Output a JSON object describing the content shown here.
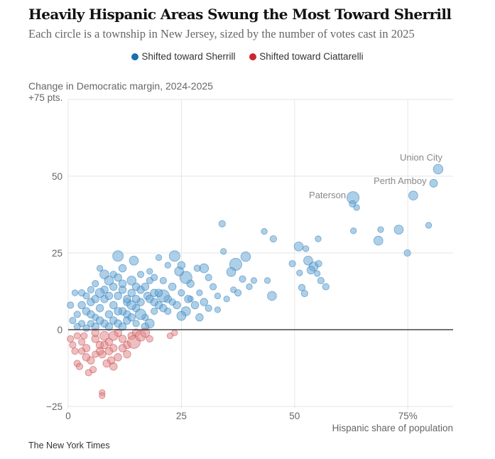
{
  "header": {
    "title": "Heavily Hispanic Areas Swung the Most Toward Sherrill",
    "subtitle": "Each circle is a township in New Jersey, sized by the number of votes cast in 2025"
  },
  "legend": [
    {
      "label": "Shifted toward Sherrill",
      "color": "#1a6fb0"
    },
    {
      "label": "Shifted toward Ciattarelli",
      "color": "#c8282d"
    }
  ],
  "footer": {
    "source": "The New York Times"
  },
  "chart_data": {
    "type": "scatter",
    "title": "Heavily Hispanic Areas Swung the Most Toward Sherrill",
    "ylabel": "Change in Democratic margin, 2024-2025",
    "xlabel": "Hispanic share of population",
    "xlim": [
      0,
      85
    ],
    "ylim": [
      -25,
      75
    ],
    "xticks": [
      {
        "v": 0,
        "label": "0"
      },
      {
        "v": 25,
        "label": "25"
      },
      {
        "v": 50,
        "label": "50"
      },
      {
        "v": 75,
        "label": "75%"
      }
    ],
    "yticks": [
      {
        "v": 75,
        "label": "+75 pts."
      },
      {
        "v": 50,
        "label": "50"
      },
      {
        "v": 25,
        "label": "25"
      },
      {
        "v": 0,
        "label": "0"
      },
      {
        "v": -25,
        "label": "−25"
      }
    ],
    "grid": true,
    "legend_position": "top-center",
    "point_format": [
      "hispanic_share",
      "margin_change",
      "relative_votes"
    ],
    "annotations": [
      {
        "label": "Union City",
        "x": 81.7,
        "y": 52.3
      },
      {
        "label": "Perth Amboy",
        "x": 80.7,
        "y": 47.7
      },
      {
        "label": "Paterson",
        "x": 62.9,
        "y": 43
      }
    ],
    "points": [
      [
        81.7,
        52.3,
        2.2
      ],
      [
        80.7,
        47.7,
        1.6
      ],
      [
        76.2,
        43.7,
        2
      ],
      [
        62.9,
        43,
        3
      ],
      [
        62.8,
        41,
        1.2
      ],
      [
        63.7,
        39.8,
        1
      ],
      [
        63,
        32.2,
        1
      ],
      [
        69,
        32.6,
        1
      ],
      [
        73,
        32.6,
        2
      ],
      [
        79.6,
        34,
        1
      ],
      [
        68.5,
        29,
        2
      ],
      [
        55.2,
        29.6,
        1
      ],
      [
        50.9,
        27.1,
        2
      ],
      [
        52.5,
        26.4,
        1
      ],
      [
        74.9,
        25,
        1.2
      ],
      [
        49.5,
        21.5,
        1.2
      ],
      [
        53,
        22.5,
        2
      ],
      [
        54.2,
        20.6,
        2
      ],
      [
        55.3,
        21.5,
        1.2
      ],
      [
        53.6,
        19.4,
        1.6
      ],
      [
        51.1,
        18.5,
        1
      ],
      [
        55,
        18.3,
        1
      ],
      [
        55.8,
        16,
        1.2
      ],
      [
        51.6,
        13.7,
        1.2
      ],
      [
        56.9,
        14,
        1.2
      ],
      [
        52.2,
        11.8,
        1.2
      ],
      [
        34,
        34.5,
        1.2
      ],
      [
        34.3,
        25.5,
        1
      ],
      [
        37,
        21.3,
        3
      ],
      [
        39.2,
        23.8,
        2.2
      ],
      [
        43.3,
        32,
        1
      ],
      [
        45.3,
        29.6,
        1.2
      ],
      [
        44,
        16,
        1
      ],
      [
        45,
        11,
        2
      ],
      [
        36,
        18.8,
        2
      ],
      [
        41,
        16,
        1
      ],
      [
        38.5,
        16.5,
        1.2
      ],
      [
        40,
        14,
        1
      ],
      [
        36.5,
        13,
        1
      ],
      [
        35,
        10,
        1
      ],
      [
        33,
        11,
        1
      ],
      [
        32,
        14,
        1.2
      ],
      [
        30,
        20,
        2
      ],
      [
        28.5,
        20,
        1.2
      ],
      [
        31,
        17,
        1.2
      ],
      [
        29,
        12,
        1
      ],
      [
        27,
        15,
        1.5
      ],
      [
        26,
        17,
        3
      ],
      [
        24.5,
        19,
        2
      ],
      [
        23.5,
        24,
        2.5
      ],
      [
        25,
        21,
        1.5
      ],
      [
        22,
        21,
        1
      ],
      [
        20,
        23.5,
        1
      ],
      [
        18,
        19,
        1
      ],
      [
        19,
        17,
        1.2
      ],
      [
        21,
        16,
        1.2
      ],
      [
        23,
        14,
        1.5
      ],
      [
        25,
        12,
        1.2
      ],
      [
        27,
        10,
        1
      ],
      [
        28,
        8,
        1.5
      ],
      [
        30,
        9,
        1.5
      ],
      [
        31,
        7,
        1.2
      ],
      [
        33,
        6.5,
        1
      ],
      [
        24,
        8,
        1.5
      ],
      [
        26,
        6,
        2
      ],
      [
        25,
        4.5,
        2
      ],
      [
        22,
        10,
        1.5
      ],
      [
        21,
        11,
        3
      ],
      [
        20,
        8,
        1.5
      ],
      [
        19,
        12,
        1.5
      ],
      [
        17.5,
        11,
        1.5
      ],
      [
        16,
        9,
        1.5
      ],
      [
        15,
        7,
        1.5
      ],
      [
        13,
        5,
        1.5
      ],
      [
        17,
        4,
        1.2
      ],
      [
        19,
        6,
        1.2
      ],
      [
        14,
        16,
        2
      ],
      [
        12,
        20,
        1.5
      ],
      [
        11,
        24,
        2.5
      ],
      [
        14.5,
        22.5,
        2
      ],
      [
        7,
        20,
        1
      ],
      [
        8,
        18,
        2
      ],
      [
        9,
        16,
        2
      ],
      [
        6,
        15,
        1.2
      ],
      [
        5,
        13,
        1.2
      ],
      [
        4,
        11,
        1.2
      ],
      [
        3,
        8,
        1.5
      ],
      [
        1.5,
        12,
        1
      ],
      [
        0.5,
        8,
        1.2
      ],
      [
        1,
        3,
        1.2
      ],
      [
        2,
        5,
        1.2
      ],
      [
        3,
        2,
        1.2
      ],
      [
        4,
        6,
        1.5
      ],
      [
        5,
        9,
        1.5
      ],
      [
        6,
        4,
        1.2
      ],
      [
        7,
        7,
        1.5
      ],
      [
        8,
        10,
        1.5
      ],
      [
        9,
        5,
        1.5
      ],
      [
        10,
        8,
        1.5
      ],
      [
        11,
        11,
        1.5
      ],
      [
        12,
        6,
        1.5
      ],
      [
        13,
        9,
        1.5
      ],
      [
        14,
        12,
        1.5
      ],
      [
        15,
        10,
        1.5
      ],
      [
        16,
        13,
        1.5
      ],
      [
        17,
        14,
        1.5
      ],
      [
        18,
        10,
        1.5
      ],
      [
        19,
        9,
        1.5
      ],
      [
        20,
        12,
        1.5
      ],
      [
        21,
        7,
        1.5
      ],
      [
        22,
        6,
        1.2
      ],
      [
        23,
        9,
        1.2
      ],
      [
        10,
        3,
        1.5
      ],
      [
        11,
        2,
        1.5
      ],
      [
        12,
        1,
        1.5
      ],
      [
        13,
        3,
        1.5
      ],
      [
        14,
        4,
        1.5
      ],
      [
        15,
        2,
        1.2
      ],
      [
        9,
        1,
        1.5
      ],
      [
        8,
        2,
        1.5
      ],
      [
        7,
        3,
        1.5
      ],
      [
        6,
        1,
        1.5
      ],
      [
        5,
        2,
        1.2
      ],
      [
        4,
        0.5,
        1.2
      ],
      [
        16,
        5,
        2.5
      ],
      [
        18,
        2,
        2
      ],
      [
        17,
        1,
        1.5
      ],
      [
        2,
        1,
        1.2
      ],
      [
        8,
        13,
        1.5
      ],
      [
        10,
        14,
        1.5
      ],
      [
        12,
        13,
        1.5
      ],
      [
        6,
        10,
        1.5
      ],
      [
        3,
        12,
        1.2
      ],
      [
        9,
        11,
        1.5
      ],
      [
        11,
        6,
        1.5
      ],
      [
        13,
        10,
        1.5
      ],
      [
        15,
        14,
        1.5
      ],
      [
        12,
        15,
        1.5
      ],
      [
        10,
        18,
        1.2
      ],
      [
        11,
        17,
        1.5
      ],
      [
        16,
        18,
        1.2
      ],
      [
        18,
        16,
        1.2
      ],
      [
        7,
        12,
        2
      ],
      [
        5,
        5,
        1.5
      ],
      [
        14,
        8,
        2
      ],
      [
        26.5,
        10,
        1.5
      ],
      [
        29,
        4,
        1.5
      ],
      [
        37.5,
        12,
        1.2
      ],
      [
        0.5,
        -3,
        1.2
      ],
      [
        1,
        -5,
        1.2
      ],
      [
        1.5,
        -7,
        1.2
      ],
      [
        2,
        -11,
        1.2
      ],
      [
        2.5,
        -12,
        1.2
      ],
      [
        3,
        -4,
        1.2
      ],
      [
        3.5,
        -2,
        1.2
      ],
      [
        4,
        -6,
        1.5
      ],
      [
        5,
        -10,
        1.5
      ],
      [
        5.5,
        -13,
        1.2
      ],
      [
        6,
        -3,
        1.5
      ],
      [
        7,
        -5,
        1.5
      ],
      [
        7.5,
        -8,
        1.5
      ],
      [
        8,
        -2,
        2
      ],
      [
        9,
        -4,
        1.5
      ],
      [
        10,
        -6,
        1.5
      ],
      [
        9.5,
        -10,
        1.5
      ],
      [
        8.5,
        -11,
        1.5
      ],
      [
        11,
        -1,
        1.5
      ],
      [
        12,
        -3,
        1.5
      ],
      [
        13,
        -5,
        1.5
      ],
      [
        14,
        -2,
        1.5
      ],
      [
        15,
        -1,
        1.5
      ],
      [
        14.5,
        -4,
        3.2
      ],
      [
        13,
        -8,
        1.5
      ],
      [
        11,
        -9,
        1.5
      ],
      [
        10,
        -12,
        1.5
      ],
      [
        7,
        -7,
        1.5
      ],
      [
        6,
        -8,
        1.2
      ],
      [
        4,
        -9,
        1.5
      ],
      [
        3,
        -7,
        1.2
      ],
      [
        2,
        -2,
        1.2
      ],
      [
        16,
        -2,
        2.5
      ],
      [
        17,
        -1,
        2
      ],
      [
        18,
        -3,
        1.2
      ],
      [
        7.5,
        -20.5,
        1
      ],
      [
        7.5,
        -21.5,
        1
      ],
      [
        22.5,
        -2,
        1
      ],
      [
        23.5,
        -1,
        1
      ],
      [
        12,
        -6,
        1.5
      ],
      [
        9,
        -7,
        1.5
      ],
      [
        4.5,
        -14,
        1.2
      ],
      [
        6,
        -1,
        1.5
      ],
      [
        10,
        -2,
        2
      ],
      [
        8,
        -5,
        1.5
      ]
    ]
  }
}
